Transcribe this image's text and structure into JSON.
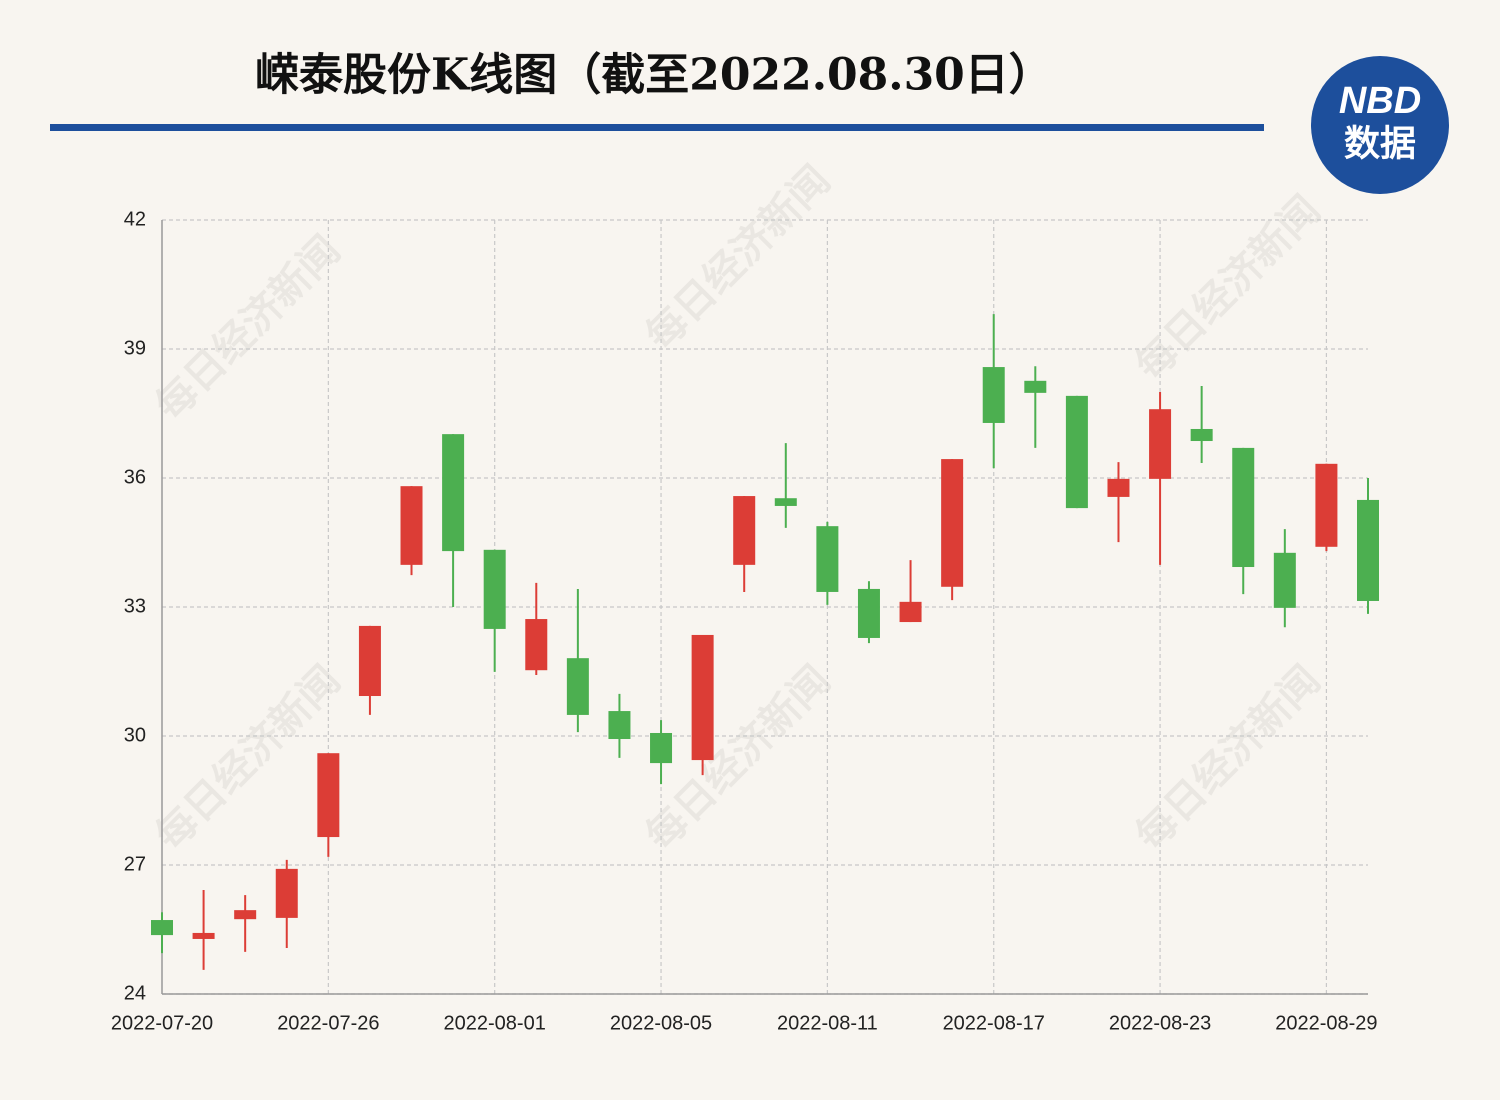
{
  "chart_data": {
    "type": "candlestick",
    "title": "嵘泰股份K线图（截至2022.08.30日）",
    "logo": [
      "NBD",
      "数据"
    ],
    "watermark": "每日经济新闻",
    "categories": [
      "2022-07-20",
      null,
      null,
      null,
      "2022-07-26",
      null,
      null,
      null,
      "2022-08-01",
      null,
      null,
      null,
      "2022-08-05",
      null,
      null,
      null,
      "2022-08-11",
      null,
      null,
      null,
      "2022-08-17",
      null,
      null,
      null,
      "2022-08-23",
      null,
      null,
      null,
      "2022-08-29",
      null
    ],
    "open": [
      25.72,
      25.28,
      25.74,
      25.77,
      27.65,
      30.93,
      33.98,
      37.02,
      34.33,
      31.53,
      31.81,
      30.58,
      30.07,
      29.44,
      33.98,
      35.53,
      34.88,
      33.42,
      32.65,
      33.47,
      38.58,
      38.26,
      37.91,
      35.56,
      35.98,
      37.14,
      36.7,
      34.26,
      34.4,
      35.49
    ],
    "high": [
      25.9,
      26.42,
      26.3,
      27.12,
      29.6,
      32.56,
      35.81,
      37.02,
      34.33,
      33.56,
      33.42,
      30.98,
      30.37,
      32.35,
      35.58,
      36.81,
      34.98,
      33.6,
      34.09,
      36.44,
      39.81,
      38.6,
      37.91,
      36.37,
      38.0,
      38.14,
      36.7,
      34.81,
      36.33,
      36.0
    ],
    "low": [
      24.95,
      24.56,
      24.98,
      25.07,
      27.19,
      30.49,
      33.74,
      33.0,
      31.49,
      31.42,
      30.09,
      29.49,
      28.88,
      29.09,
      33.35,
      34.84,
      33.05,
      32.16,
      32.65,
      33.16,
      36.23,
      36.7,
      35.3,
      34.51,
      33.98,
      36.35,
      33.3,
      32.53,
      34.3,
      32.84
    ],
    "close": [
      25.37,
      25.42,
      25.95,
      26.91,
      29.6,
      32.56,
      35.81,
      34.3,
      32.49,
      32.72,
      30.49,
      29.93,
      29.37,
      32.35,
      35.58,
      35.35,
      33.35,
      32.28,
      33.12,
      36.44,
      37.28,
      37.98,
      35.3,
      35.98,
      37.6,
      36.86,
      33.93,
      32.98,
      36.33,
      33.14
    ],
    "up_color": "#dc3d36",
    "down_color": "#4caf50",
    "ylim": [
      24,
      42
    ],
    "yticks": [
      24,
      27,
      30,
      33,
      36,
      39,
      42
    ],
    "grid": true
  }
}
